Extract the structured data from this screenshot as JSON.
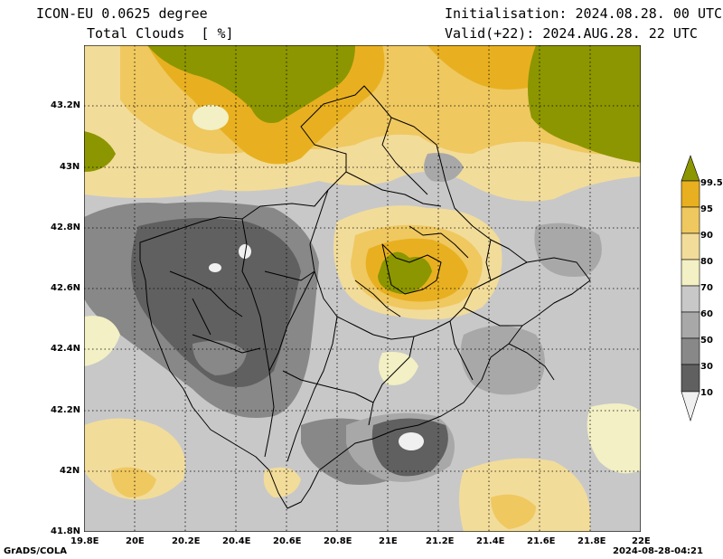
{
  "header": {
    "model": "ICON-EU 0.0625 degree",
    "variable": "Total Clouds  [ %]",
    "init": "Initialisation: 2024.08.28. 00 UTC",
    "valid": "Valid(+22): 2024.AUG.28. 22 UTC"
  },
  "axes": {
    "lat_ticks": [
      "43.2N",
      "43N",
      "42.8N",
      "42.6N",
      "42.4N",
      "42.2N",
      "42N",
      "41.8N"
    ],
    "lon_ticks": [
      "19.8E",
      "20E",
      "20.2E",
      "20.4E",
      "20.6E",
      "20.8E",
      "21E",
      "21.2E",
      "21.4E",
      "21.6E",
      "21.8E",
      "22E"
    ],
    "lat_range": [
      41.8,
      43.4
    ],
    "lon_range": [
      19.8,
      22.0
    ]
  },
  "legend": {
    "labels": [
      "99.5",
      "95",
      "90",
      "80",
      "70",
      "60",
      "50",
      "30",
      "10"
    ],
    "colors": [
      "#8c9600",
      "#e8b020",
      "#efc860",
      "#f2dc9a",
      "#f2f0c4",
      "#c8c8c8",
      "#a8a8a8",
      "#888888",
      "#606060",
      "#f0f0f0"
    ]
  },
  "footer": {
    "left": "GrADS/COLA",
    "right": "2024-08-28-04:21"
  }
}
